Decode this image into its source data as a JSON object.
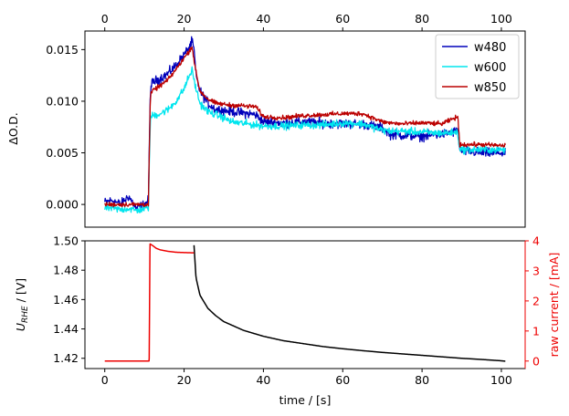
{
  "chart_data": [
    {
      "type": "line",
      "panel": "top",
      "ylabel": "ΔO.D.",
      "xlim": [
        -5,
        106
      ],
      "ylim": [
        -0.0022,
        0.0168
      ],
      "x_ticks_top": [
        0,
        20,
        40,
        60,
        80,
        100
      ],
      "y_ticks": [
        0.0,
        0.005,
        0.01,
        0.015
      ],
      "y_tick_labels": [
        "0.000",
        "0.005",
        "0.010",
        "0.015"
      ],
      "legend_position": "top-right",
      "series": [
        {
          "name": "w480",
          "color": "#0000bb",
          "x": [
            0,
            2,
            4,
            6,
            8,
            10,
            11,
            11.5,
            12,
            14,
            16,
            18,
            20,
            21,
            22,
            22.5,
            23,
            24,
            26,
            28,
            30,
            32,
            34,
            36,
            38,
            40,
            45,
            50,
            55,
            60,
            65,
            70,
            72,
            75,
            80,
            85,
            89,
            89.5,
            90,
            95,
            100,
            101
          ],
          "y": [
            0.0002,
            0.0004,
            0.0,
            0.0008,
            -0.0004,
            0.0,
            0.0004,
            0.0112,
            0.0118,
            0.0122,
            0.0127,
            0.0135,
            0.0145,
            0.015,
            0.0158,
            0.015,
            0.0125,
            0.011,
            0.0098,
            0.0092,
            0.0091,
            0.009,
            0.0089,
            0.0088,
            0.0087,
            0.008,
            0.0079,
            0.008,
            0.0079,
            0.0078,
            0.0078,
            0.0074,
            0.0068,
            0.0067,
            0.0066,
            0.0068,
            0.0071,
            0.0053,
            0.0052,
            0.005,
            0.005,
            0.0049
          ]
        },
        {
          "name": "w600",
          "color": "#00e5ee",
          "x": [
            0,
            2,
            4,
            6,
            8,
            10,
            11,
            11.5,
            12,
            14,
            16,
            18,
            20,
            21,
            22,
            23,
            24,
            26,
            28,
            30,
            32,
            34,
            36,
            38,
            40,
            45,
            50,
            55,
            60,
            65,
            70,
            72,
            75,
            80,
            85,
            89,
            89.5,
            90,
            95,
            100,
            101
          ],
          "y": [
            -0.0003,
            -0.0004,
            -0.0005,
            -0.0004,
            -0.0006,
            -0.0004,
            -0.0003,
            0.0083,
            0.0086,
            0.0088,
            0.0092,
            0.01,
            0.0112,
            0.0122,
            0.013,
            0.0112,
            0.0098,
            0.009,
            0.0087,
            0.0084,
            0.008,
            0.0079,
            0.0078,
            0.0077,
            0.0076,
            0.0076,
            0.0077,
            0.0077,
            0.0079,
            0.0078,
            0.0072,
            0.0071,
            0.0071,
            0.007,
            0.0069,
            0.007,
            0.0054,
            0.0053,
            0.0053,
            0.0053,
            0.0053
          ]
        },
        {
          "name": "w850",
          "color": "#bb0000",
          "x": [
            0,
            2,
            4,
            6,
            8,
            10,
            11,
            11.5,
            12,
            14,
            16,
            18,
            20,
            21,
            22,
            23,
            24,
            26,
            28,
            30,
            32,
            34,
            36,
            38,
            40,
            45,
            50,
            55,
            60,
            65,
            70,
            72,
            75,
            80,
            85,
            89,
            89.5,
            90,
            95,
            100,
            101
          ],
          "y": [
            0.0,
            0.0,
            0.0,
            0.0,
            0.0,
            0.0,
            0.0,
            0.0105,
            0.011,
            0.0115,
            0.0121,
            0.0131,
            0.0142,
            0.0147,
            0.0153,
            0.0128,
            0.011,
            0.0102,
            0.0098,
            0.0097,
            0.0096,
            0.0096,
            0.0095,
            0.0095,
            0.0085,
            0.0084,
            0.0086,
            0.0087,
            0.0088,
            0.0088,
            0.008,
            0.0079,
            0.0078,
            0.0079,
            0.0078,
            0.0085,
            0.0058,
            0.0058,
            0.0058,
            0.0057,
            0.0057
          ]
        }
      ]
    },
    {
      "type": "line",
      "panel": "bottom",
      "xlabel": "time / [s]",
      "ylabel_main": "U",
      "ylabel_sub": "RHE",
      "ylabel_unit": " / [V]",
      "ylabel_right": "raw current / [mA]",
      "xlim": [
        -5,
        106
      ],
      "ylim_left": [
        1.413,
        1.5
      ],
      "ylim_right": [
        -0.25,
        4.0
      ],
      "x_ticks": [
        0,
        20,
        40,
        60,
        80,
        100
      ],
      "y_ticks_left": [
        1.42,
        1.44,
        1.46,
        1.48,
        1.5
      ],
      "y_tick_labels_left": [
        "1.42",
        "1.44",
        "1.46",
        "1.48",
        "1.50"
      ],
      "y_ticks_right": [
        0,
        1,
        2,
        3,
        4
      ],
      "right_axis_color": "#ee0000",
      "series": [
        {
          "axis": "left",
          "color": "#000000",
          "x": [
            22.5,
            23,
            24,
            26,
            28,
            30,
            35,
            40,
            45,
            50,
            55,
            60,
            65,
            70,
            75,
            80,
            85,
            90,
            95,
            100,
            101
          ],
          "y": [
            1.497,
            1.475,
            1.463,
            1.454,
            1.449,
            1.445,
            1.439,
            1.435,
            1.432,
            1.43,
            1.428,
            1.4265,
            1.4252,
            1.424,
            1.423,
            1.422,
            1.421,
            1.42,
            1.4192,
            1.4183,
            1.418
          ]
        },
        {
          "axis": "right",
          "color": "#ee0000",
          "x": [
            0,
            11.2,
            11.4,
            12,
            13,
            14,
            16,
            18,
            20,
            22.5
          ],
          "y": [
            0,
            0,
            3.9,
            3.85,
            3.75,
            3.7,
            3.65,
            3.62,
            3.61,
            3.6
          ]
        }
      ]
    }
  ]
}
